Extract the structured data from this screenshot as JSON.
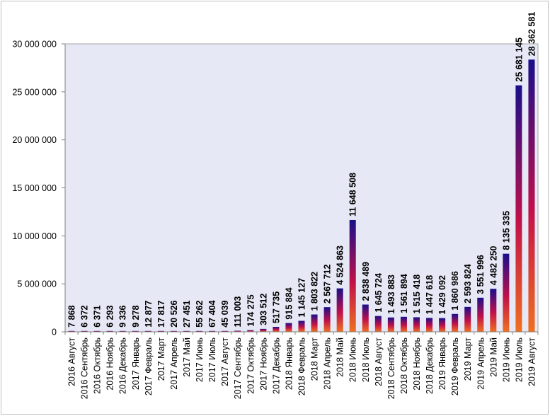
{
  "chart_data": {
    "type": "bar",
    "categories": [
      "2016 Август",
      "2016 Сентябрь",
      "2016 Октябрь",
      "2016 Ноябрь",
      "2016 Декабрь",
      "2017 Январь",
      "2017 Февраль",
      "2017 Март",
      "2017 Апрель",
      "2017 Май",
      "2017 Июнь",
      "2017 Июль",
      "2017 Август",
      "2017 Сентябрь",
      "2017 Октябрь",
      "2017 Ноябрь",
      "2017 Декабрь",
      "2018 Январь",
      "2018 Февраль",
      "2018 Март",
      "2018 Апрель",
      "2018 Май",
      "2018 Июнь",
      "2018 Июль",
      "2018 Август",
      "2018 Сентябрь",
      "2018 Октябрь",
      "2018 Ноябрь",
      "2018 Декабрь",
      "2019 Январь",
      "2019 Февраль",
      "2019 Март",
      "2019 Апрель",
      "2019 Май",
      "2019 Июнь",
      "2019 Июль",
      "2019 Август"
    ],
    "values": [
      7868,
      6372,
      6371,
      6293,
      9336,
      9278,
      12877,
      17817,
      20526,
      27451,
      55262,
      67404,
      45039,
      111003,
      174275,
      303512,
      517735,
      915884,
      1145127,
      1803822,
      2567712,
      4524863,
      11648508,
      2838489,
      1645724,
      1493883,
      1561894,
      1515418,
      1447618,
      1429092,
      1860986,
      2593824,
      3551996,
      4482250,
      8135335,
      25681145,
      28362581
    ],
    "value_labels": [
      "7 868",
      "6 372",
      "6 371",
      "6 293",
      "9 336",
      "9 278",
      "12 877",
      "17 817",
      "20 526",
      "27 451",
      "55 262",
      "67 404",
      "45 039",
      "111 003",
      "174 275",
      "303 512",
      "517 735",
      "915 884",
      "1 145 127",
      "1 803 822",
      "2 567 712",
      "4 524 863",
      "11 648 508",
      "2 838 489",
      "1 645 724",
      "1 493 883",
      "1 561 894",
      "1 515 418",
      "1 447 618",
      "1 429 092",
      "1 860 986",
      "2 593 824",
      "3 551 996",
      "4 482 250",
      "8 135 335",
      "25 681 145",
      "28 362 581"
    ],
    "ylim": [
      0,
      30000000
    ],
    "yticks": [
      0,
      5000000,
      10000000,
      15000000,
      20000000,
      25000000,
      30000000
    ],
    "ytick_labels": [
      "0",
      "5 000 000",
      "10 000 000",
      "15 000 000",
      "20 000 000",
      "25 000 000",
      "30 000 000"
    ],
    "grid": false,
    "legend": "none",
    "colors": {
      "plot_background": "#e6e8f5",
      "bar_gradient_top": "#1a0f8a",
      "bar_gradient_mid": "#c0104a",
      "bar_gradient_bottom": "#f07020"
    }
  }
}
